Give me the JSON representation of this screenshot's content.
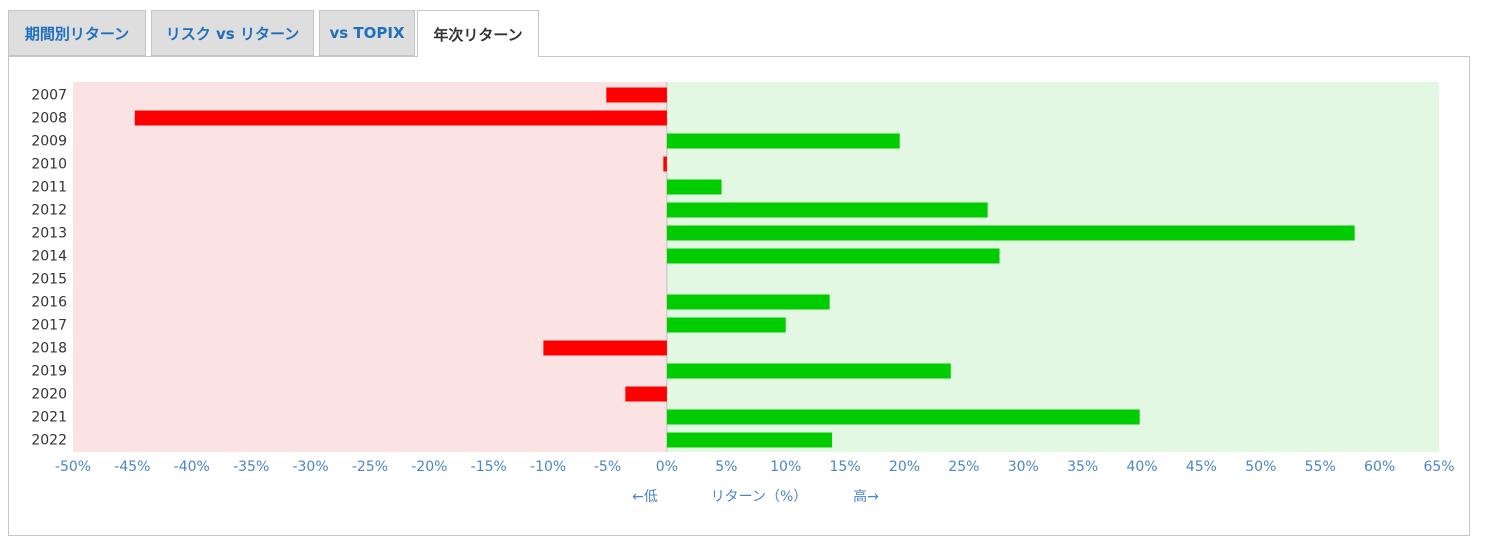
{
  "tabs": [
    {
      "label": "期間別リターン",
      "active": false
    },
    {
      "label": "リスク vs リターン",
      "active": false
    },
    {
      "label": "vs TOPIX",
      "active": false
    },
    {
      "label": "年次リターン",
      "active": true
    }
  ],
  "colors": {
    "negative_bar": "#ff0000",
    "positive_bar": "#00cc00",
    "negative_bg": "#fbe3e3",
    "positive_bg": "#e3f8e3",
    "axis_text": "#4a86c8",
    "tab_text": "#1f6fbf"
  },
  "chart_data": {
    "type": "bar",
    "orientation": "horizontal",
    "categories": [
      "2007",
      "2008",
      "2009",
      "2010",
      "2011",
      "2012",
      "2013",
      "2014",
      "2015",
      "2016",
      "2017",
      "2018",
      "2019",
      "2020",
      "2021",
      "2022"
    ],
    "values": [
      -5.1,
      -44.8,
      19.6,
      -0.3,
      4.6,
      27.0,
      57.9,
      28.0,
      null,
      13.7,
      10.0,
      -10.4,
      23.9,
      -3.5,
      39.8,
      13.9
    ],
    "xlim": [
      -50,
      65
    ],
    "xticks": [
      "-50%",
      "-45%",
      "-40%",
      "-35%",
      "-30%",
      "-25%",
      "-20%",
      "-15%",
      "-10%",
      "-5%",
      "0%",
      "5%",
      "10%",
      "15%",
      "20%",
      "25%",
      "30%",
      "35%",
      "40%",
      "45%",
      "50%",
      "55%",
      "60%",
      "65%"
    ],
    "xlabel": {
      "low": "←低",
      "title": "リターン（%）",
      "high": "高→"
    }
  }
}
